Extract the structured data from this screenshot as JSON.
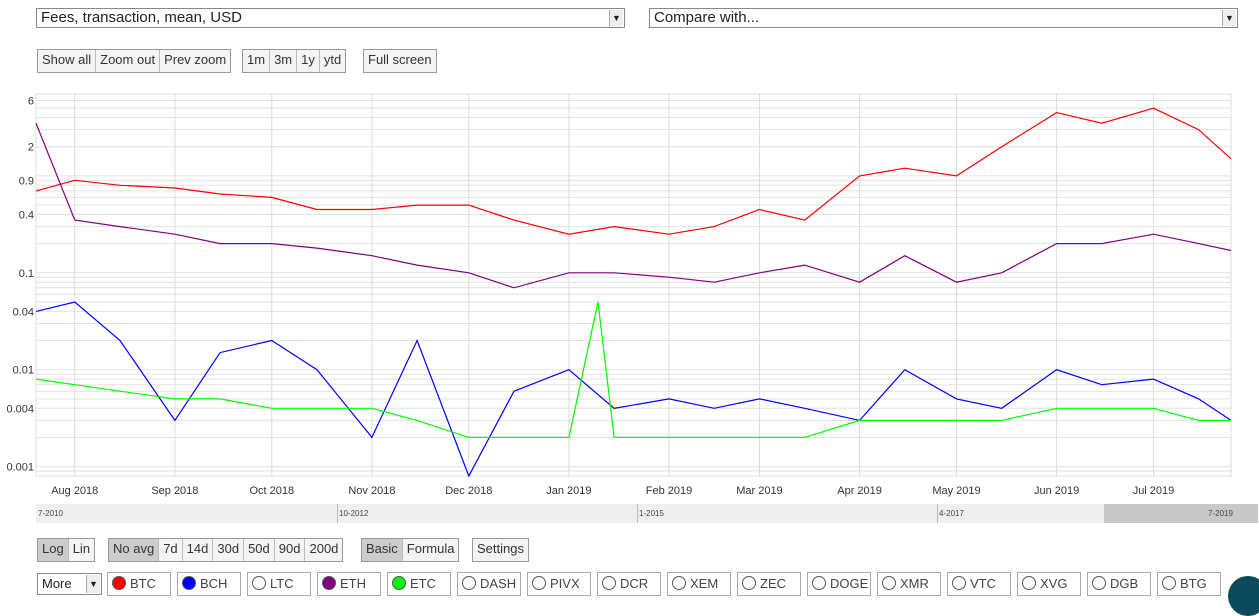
{
  "selectors": {
    "metric": "Fees, transaction, mean, USD",
    "compare": "Compare with..."
  },
  "zoom_buttons": [
    "Show all",
    "Zoom out",
    "Prev zoom"
  ],
  "range_buttons": [
    "1m",
    "3m",
    "1y",
    "ytd"
  ],
  "fullscreen_label": "Full screen",
  "scale_buttons": [
    "Log",
    "Lin"
  ],
  "avg_buttons": [
    "No avg",
    "7d",
    "14d",
    "30d",
    "50d",
    "90d",
    "200d"
  ],
  "mode_buttons": [
    "Basic",
    "Formula"
  ],
  "settings_label": "Settings",
  "more_label": "More",
  "coins": [
    {
      "label": "BTC",
      "color": "#ff0000",
      "active": true
    },
    {
      "label": "BCH",
      "color": "#0000ff",
      "active": true
    },
    {
      "label": "LTC",
      "color": "#ffffff",
      "active": false
    },
    {
      "label": "ETH",
      "color": "#800080",
      "active": true
    },
    {
      "label": "ETC",
      "color": "#00ff00",
      "active": true
    },
    {
      "label": "DASH",
      "color": "#ffffff",
      "active": false
    },
    {
      "label": "PIVX",
      "color": "#ffffff",
      "active": false
    },
    {
      "label": "DCR",
      "color": "#ffffff",
      "active": false
    },
    {
      "label": "XEM",
      "color": "#ffffff",
      "active": false
    },
    {
      "label": "ZEC",
      "color": "#ffffff",
      "active": false
    },
    {
      "label": "DOGE",
      "color": "#ffffff",
      "active": false
    },
    {
      "label": "XMR",
      "color": "#ffffff",
      "active": false
    },
    {
      "label": "VTC",
      "color": "#ffffff",
      "active": false
    },
    {
      "label": "XVG",
      "color": "#ffffff",
      "active": false
    },
    {
      "label": "DGB",
      "color": "#ffffff",
      "active": false
    },
    {
      "label": "BTG",
      "color": "#ffffff",
      "active": false
    }
  ],
  "navigator_labels": [
    "7-2010",
    "10-2012",
    "1-2015",
    "4-2017",
    "7-2019"
  ],
  "chart_data": {
    "type": "line",
    "title": "",
    "yscale": "log",
    "ylim": [
      0.0008,
      7
    ],
    "xlim": [
      "2018-07-20",
      "2019-07-25"
    ],
    "ytick_labels": [
      "6",
      "2",
      "0.9",
      "0.4",
      "0.1",
      "0.04",
      "0.01",
      "0.004",
      "0.001"
    ],
    "ytick_values": [
      6,
      2,
      0.9,
      0.4,
      0.1,
      0.04,
      0.01,
      0.004,
      0.001
    ],
    "xtick_labels": [
      "Aug 2018",
      "Sep 2018",
      "Oct 2018",
      "Nov 2018",
      "Dec 2018",
      "Jan 2019",
      "Feb 2019",
      "Mar 2019",
      "Apr 2019",
      "May 2019",
      "Jun 2019",
      "Jul 2019"
    ],
    "xtick_dates": [
      "2018-08-01",
      "2018-09-01",
      "2018-10-01",
      "2018-11-01",
      "2018-12-01",
      "2019-01-01",
      "2019-02-01",
      "2019-03-01",
      "2019-04-01",
      "2019-05-01",
      "2019-06-01",
      "2019-07-01"
    ],
    "grid": true,
    "series": [
      {
        "name": "BTC",
        "color": "#ff0000",
        "dates": [
          "2018-07-20",
          "2018-08-01",
          "2018-08-15",
          "2018-09-01",
          "2018-09-15",
          "2018-10-01",
          "2018-10-15",
          "2018-11-01",
          "2018-11-15",
          "2018-12-01",
          "2018-12-15",
          "2019-01-01",
          "2019-01-15",
          "2019-02-01",
          "2019-02-15",
          "2019-03-01",
          "2019-03-15",
          "2019-04-01",
          "2019-04-15",
          "2019-05-01",
          "2019-05-15",
          "2019-06-01",
          "2019-06-15",
          "2019-07-01",
          "2019-07-15",
          "2019-07-25"
        ],
        "values": [
          0.7,
          0.9,
          0.8,
          0.75,
          0.65,
          0.6,
          0.45,
          0.45,
          0.5,
          0.5,
          0.35,
          0.25,
          0.3,
          0.25,
          0.3,
          0.45,
          0.35,
          1.0,
          1.2,
          1.0,
          2.0,
          4.5,
          3.5,
          5.0,
          3.0,
          1.5
        ]
      },
      {
        "name": "ETH",
        "color": "#800080",
        "dates": [
          "2018-07-20",
          "2018-08-01",
          "2018-08-15",
          "2018-09-01",
          "2018-09-15",
          "2018-10-01",
          "2018-10-15",
          "2018-11-01",
          "2018-11-15",
          "2018-12-01",
          "2018-12-15",
          "2019-01-01",
          "2019-01-15",
          "2019-02-01",
          "2019-02-15",
          "2019-03-01",
          "2019-03-15",
          "2019-04-01",
          "2019-04-15",
          "2019-05-01",
          "2019-05-15",
          "2019-06-01",
          "2019-06-15",
          "2019-07-01",
          "2019-07-15",
          "2019-07-25"
        ],
        "values": [
          3.5,
          0.35,
          0.3,
          0.25,
          0.2,
          0.2,
          0.18,
          0.15,
          0.12,
          0.1,
          0.07,
          0.1,
          0.1,
          0.09,
          0.08,
          0.1,
          0.12,
          0.08,
          0.15,
          0.08,
          0.1,
          0.2,
          0.2,
          0.25,
          0.2,
          0.17
        ]
      },
      {
        "name": "BCH",
        "color": "#0000ff",
        "dates": [
          "2018-07-20",
          "2018-08-01",
          "2018-08-15",
          "2018-09-01",
          "2018-09-15",
          "2018-10-01",
          "2018-10-15",
          "2018-11-01",
          "2018-11-15",
          "2018-12-01",
          "2018-12-15",
          "2019-01-01",
          "2019-01-15",
          "2019-02-01",
          "2019-02-15",
          "2019-03-01",
          "2019-03-15",
          "2019-04-01",
          "2019-04-15",
          "2019-05-01",
          "2019-05-15",
          "2019-06-01",
          "2019-06-15",
          "2019-07-01",
          "2019-07-15",
          "2019-07-25"
        ],
        "values": [
          0.04,
          0.05,
          0.02,
          0.003,
          0.015,
          0.02,
          0.01,
          0.002,
          0.02,
          0.0008,
          0.006,
          0.01,
          0.004,
          0.005,
          0.004,
          0.005,
          0.004,
          0.003,
          0.01,
          0.005,
          0.004,
          0.01,
          0.007,
          0.008,
          0.005,
          0.003
        ]
      },
      {
        "name": "ETC",
        "color": "#00ff00",
        "dates": [
          "2018-07-20",
          "2018-08-01",
          "2018-08-15",
          "2018-09-01",
          "2018-09-15",
          "2018-10-01",
          "2018-10-15",
          "2018-11-01",
          "2018-11-15",
          "2018-12-01",
          "2018-12-15",
          "2019-01-01",
          "2019-01-10",
          "2019-01-15",
          "2019-02-01",
          "2019-02-15",
          "2019-03-01",
          "2019-03-15",
          "2019-04-01",
          "2019-04-15",
          "2019-05-01",
          "2019-05-15",
          "2019-06-01",
          "2019-06-15",
          "2019-07-01",
          "2019-07-15",
          "2019-07-25"
        ],
        "values": [
          0.008,
          0.007,
          0.006,
          0.005,
          0.005,
          0.004,
          0.004,
          0.004,
          0.003,
          0.002,
          0.002,
          0.002,
          0.05,
          0.002,
          0.002,
          0.002,
          0.002,
          0.002,
          0.003,
          0.003,
          0.003,
          0.003,
          0.004,
          0.004,
          0.004,
          0.003,
          0.003
        ]
      }
    ]
  }
}
